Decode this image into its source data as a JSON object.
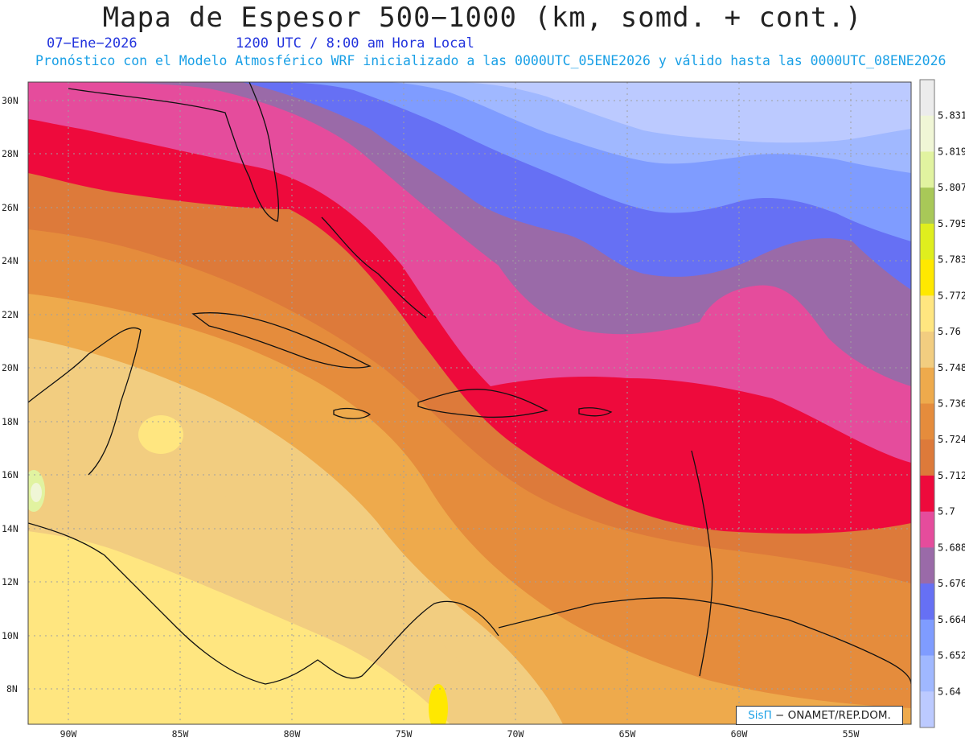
{
  "header": {
    "title": "Mapa de Espesor 500−1000 (km, somd. + cont.)",
    "date": "07−Ene−2026",
    "time": "1200 UTC / 8:00 am Hora Local",
    "subtitle": "Pronóstico con el Modelo Atmosférico WRF inicializado a las 0000UTC_05ENE2026 y válido hasta las 0000UTC_08ENE2026"
  },
  "axes": {
    "lat_labels": [
      "30N",
      "28N",
      "26N",
      "24N",
      "22N",
      "20N",
      "18N",
      "16N",
      "14N",
      "12N",
      "10N",
      "8N"
    ],
    "lon_labels": [
      "90W",
      "85W",
      "80W",
      "75W",
      "70W",
      "65W",
      "60W",
      "55W"
    ]
  },
  "colorbar": {
    "labels": [
      "5.831",
      "5.819",
      "5.807",
      "5.795",
      "5.783",
      "5.772",
      "5.76",
      "5.748",
      "5.736",
      "5.724",
      "5.712",
      "5.7",
      "5.688",
      "5.676",
      "5.664",
      "5.652",
      "5.64"
    ],
    "colors": [
      "#ececec",
      "#f0f6d6",
      "#e1f3a0",
      "#a8c858",
      "#dfee1e",
      "#ffe800",
      "#ffe680",
      "#f2cd80",
      "#eeaa4c",
      "#e58c3c",
      "#dd7a3a",
      "#ee0a3c",
      "#e54c9c",
      "#9a6aa8",
      "#6670f4",
      "#7f9cff",
      "#a0b8ff",
      "#bccaff"
    ]
  },
  "credit": {
    "sis": "SisΠ",
    "rest": " − ONAMET/REP.DOM."
  }
}
